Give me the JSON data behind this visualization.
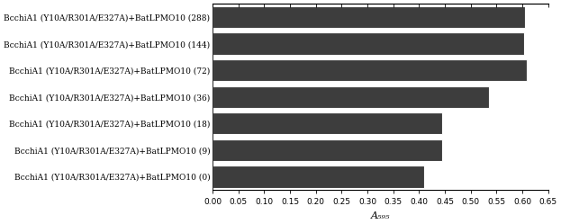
{
  "categories": [
    "BcchiA1 (Y10A/R301A/E327A)+BatLPMO10 (288)",
    "BcchiA1 (Y10A/R301A/E327A)+BatLPMO10 (144)",
    "BcchiA1 (Y10A/R301A/E327A)+BatLPMO10 (72)",
    "BcchiA1 (Y10A/R301A/E327A)+BatLPMO10 (36)",
    "BcchiA1 (Y10A/R301A/E327A)+BatLPMO10 (18)",
    "BcchiA1 (Y10A/R301A/E327A)+BatLPMO10 (9)",
    "BcchiA1 (Y10A/R301A/E327A)+BatLPMO10 (0)"
  ],
  "values": [
    0.605,
    0.603,
    0.608,
    0.535,
    0.445,
    0.445,
    0.41
  ],
  "bar_color": "#3d3d3d",
  "xlabel": "A₅₉₅",
  "xlim": [
    0.0,
    0.65
  ],
  "xticks": [
    0.0,
    0.05,
    0.1,
    0.15,
    0.2,
    0.25,
    0.3,
    0.35,
    0.4,
    0.45,
    0.5,
    0.55,
    0.6,
    0.65
  ],
  "bar_height": 0.82,
  "figure_width": 6.23,
  "figure_height": 2.49,
  "dpi": 100,
  "tick_label_fontsize": 6.5,
  "xlabel_fontsize": 8,
  "ylabel_fontsize": 6.5,
  "bar_edgecolor": "#ffffff",
  "bg_color": "#ffffff"
}
